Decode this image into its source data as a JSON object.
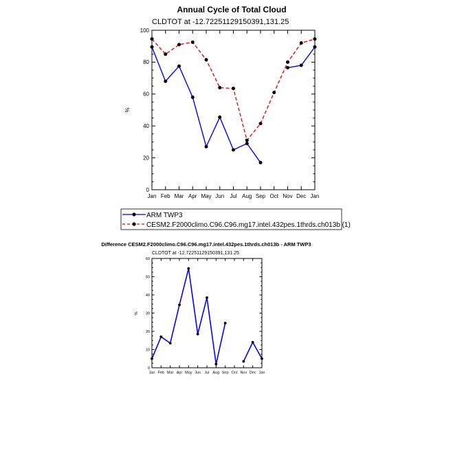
{
  "chart_data": [
    {
      "type": "line",
      "title": "Annual Cycle of Total Cloud",
      "subtitle": "CLDTOT at -12.72251129150391,131.25",
      "xlabel": "",
      "ylabel": "%",
      "categories": [
        "Jan",
        "Feb",
        "Mar",
        "Apr",
        "May",
        "Jun",
        "Jul",
        "Aug",
        "Sep",
        "Oct",
        "Nov",
        "Dec",
        "Jan"
      ],
      "ylim": [
        0,
        100
      ],
      "yticks": [
        0,
        20,
        40,
        60,
        80,
        100
      ],
      "series": [
        {
          "name": "ARM TWP3",
          "color": "#0000ff",
          "dash": "solid",
          "values": [
            89.5,
            68,
            77.5,
            58,
            27,
            45.5,
            25,
            29,
            17,
            null,
            76.5,
            78,
            89.5
          ]
        },
        {
          "name": "CESM2.F2000climo.C96.C96.mg17.intel.432pes.1thrds.ch013b (1)",
          "color": "#ff0000",
          "dash": "dashed",
          "values": [
            94.5,
            85,
            91,
            92.5,
            81.5,
            64,
            63.5,
            31,
            41.5,
            61,
            80,
            92,
            94.5
          ]
        }
      ]
    },
    {
      "type": "line",
      "title": "Difference CESM2.F2000climo.C96.C96.mg17.intel.432pes.1thrds.ch013b - ARM TWP3",
      "subtitle": "CLDTOT at -12.72251129150391,131.25",
      "xlabel": "",
      "ylabel": "%",
      "categories": [
        "Jan",
        "Feb",
        "Mar",
        "Apr",
        "May",
        "Jun",
        "Jul",
        "Aug",
        "Sep",
        "Oct",
        "Nov",
        "Dec",
        "Jan"
      ],
      "ylim": [
        0,
        60
      ],
      "yticks": [
        0,
        10,
        20,
        30,
        40,
        50,
        60
      ],
      "series": [
        {
          "name": "Difference",
          "color": "#0000ff",
          "dash": "solid",
          "values": [
            5,
            17,
            13.5,
            34.5,
            54.5,
            18.5,
            38.5,
            2,
            24.5,
            null,
            3.5,
            14,
            5
          ]
        }
      ]
    }
  ]
}
